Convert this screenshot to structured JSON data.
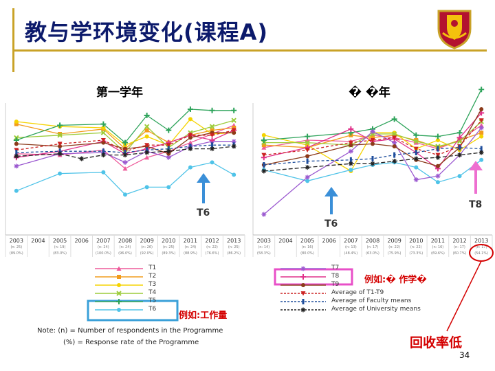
{
  "slide": {
    "title": "教与学环境变化(课程A)",
    "page_number": "34"
  },
  "panels": {
    "left_header": "第一学年",
    "right_header": "� �年",
    "left_marker": "T6",
    "right_marker_t6": "T6",
    "right_marker_t8": "T8"
  },
  "colors": {
    "title": "#0c1a6b",
    "frame": "#c9a227",
    "annotation_red": "#d40000",
    "arrow_blue": "#3a8fd8",
    "arrow_pink": "#ee6fd0",
    "box_blue": "#3aa0d8",
    "box_pink": "#e84fc8"
  },
  "annotations": {
    "example_workload": "例如:工作量",
    "example_learning": "例如:� 作学�",
    "low_response": "回收率低"
  },
  "notes": {
    "n_note": "Note: (n) = Number of respondents in the Programme",
    "pct_note": "(%) = Response rate of the Programme"
  },
  "legend": {
    "left": [
      {
        "label": "T1",
        "color": "#ee5a9a",
        "marker": "triangle"
      },
      {
        "label": "T2",
        "color": "#f29b1c",
        "marker": "square"
      },
      {
        "label": "T3",
        "color": "#f5d300",
        "marker": "circle"
      },
      {
        "label": "T4",
        "color": "#9ccc3a",
        "marker": "x"
      },
      {
        "label": "T5",
        "color": "#2da35a",
        "marker": "plus"
      },
      {
        "label": "T6",
        "color": "#4fc3e8",
        "marker": "dot"
      }
    ],
    "right": [
      {
        "label": "T7",
        "color": "#9b59d0",
        "marker": "star"
      },
      {
        "label": "T8",
        "color": "#e0318a",
        "marker": "plus"
      },
      {
        "label": "T9",
        "color": "#8b3a1a",
        "marker": "dot"
      },
      {
        "label": "Average of T1-T9",
        "color": "#cc2222",
        "marker": "triangle-down"
      },
      {
        "label": "Average of Faculty means",
        "color": "#1f4e9c",
        "marker": "bar"
      },
      {
        "label": "Average of University means",
        "color": "#222222",
        "marker": "star"
      }
    ]
  },
  "chart_data": [
    {
      "type": "line",
      "title": "第一学年",
      "ylim": [
        0,
        10
      ],
      "categories": [
        "2003",
        "2004",
        "2005",
        "2006",
        "2007",
        "2008",
        "2009",
        "2010",
        "2011",
        "2012",
        "2013"
      ],
      "respondents": [
        "(n: 25)",
        "",
        "(n: 19)",
        "",
        "(n: 24)",
        "(n: 24)",
        "(n: 26)",
        "(n: 25)",
        "(n: 24)",
        "(n: 22)",
        "(n: 25)"
      ],
      "response_rates": [
        "(89.0%)",
        "",
        "(83.0%)",
        "",
        "(100.0%)",
        "(96.0%)",
        "(92.0%)",
        "(89.3%)",
        "(88.9%)",
        "(76.6%)",
        "(86.2%)"
      ],
      "series": [
        {
          "name": "T1",
          "values": [
            5.9,
            null,
            5.8,
            null,
            6.2,
            4.7,
            5.6,
            6.1,
            6.8,
            7.5,
            8.2
          ]
        },
        {
          "name": "T2",
          "values": [
            8.3,
            null,
            7.5,
            null,
            7.9,
            6.3,
            7.8,
            6.8,
            7.4,
            7.8,
            8.0
          ]
        },
        {
          "name": "T3",
          "values": [
            8.5,
            null,
            8.1,
            null,
            8.0,
            6.6,
            7.3,
            6.6,
            8.7,
            7.5,
            7.6
          ]
        },
        {
          "name": "T4",
          "values": [
            7.2,
            null,
            7.4,
            null,
            7.6,
            6.0,
            8.1,
            6.4,
            7.6,
            8.1,
            8.6
          ]
        },
        {
          "name": "T5",
          "values": [
            7.0,
            null,
            8.2,
            null,
            8.3,
            6.8,
            9.0,
            7.8,
            9.5,
            9.4,
            9.4
          ]
        },
        {
          "name": "T6",
          "values": [
            2.9,
            null,
            4.3,
            null,
            4.4,
            2.6,
            3.2,
            3.2,
            4.8,
            5.2,
            4.2
          ]
        },
        {
          "name": "T7",
          "values": [
            4.9,
            null,
            5.9,
            null,
            6.0,
            5.2,
            6.1,
            5.6,
            6.5,
            6.9,
            6.9
          ]
        },
        {
          "name": "T8",
          "values": [
            5.6,
            null,
            6.1,
            null,
            6.9,
            5.9,
            6.3,
            6.8,
            7.4,
            7.0,
            7.8
          ]
        },
        {
          "name": "T9",
          "values": [
            6.7,
            null,
            6.5,
            null,
            6.8,
            6.3,
            6.5,
            5.9,
            7.2,
            7.6,
            7.6
          ]
        },
        {
          "name": "Average of T1-T9",
          "values": [
            6.2,
            null,
            6.7,
            null,
            7.0,
            6.1,
            6.6,
            6.6,
            7.4,
            7.4,
            7.8
          ]
        },
        {
          "name": "Average of Faculty means",
          "values": [
            6.0,
            null,
            6.1,
            null,
            6.1,
            6.0,
            6.2,
            6.3,
            6.5,
            6.6,
            6.6
          ]
        },
        {
          "name": "Average of University means",
          "values": [
            5.7,
            null,
            5.9,
            5.5,
            5.8,
            5.8,
            6.0,
            6.1,
            6.3,
            6.3,
            6.5
          ]
        }
      ]
    },
    {
      "type": "line",
      "title": "� �年",
      "ylim": [
        0,
        10
      ],
      "categories": [
        "2003",
        "2004",
        "2005",
        "2006",
        "2007",
        "2008",
        "2009",
        "2010",
        "2011",
        "2012",
        "2013"
      ],
      "respondents": [
        "(n: 14)",
        "",
        "(n: 16)",
        "",
        "(n: 13)",
        "(n: 17)",
        "(n: 22)",
        "(n: 22)",
        "(n: 16)",
        "(n: 17)",
        "(n: 17)"
      ],
      "response_rates": [
        "(58.3%)",
        "",
        "(80.0%)",
        "",
        "(48.4%)",
        "(63.0%)",
        "(75.9%)",
        "(73.3%)",
        "(69.6%)",
        "(60.7%)",
        "(54.1%)"
      ],
      "series": [
        {
          "name": "T1",
          "values": [
            6.4,
            null,
            7.0,
            null,
            6.9,
            7.4,
            7.2,
            6.8,
            6.3,
            7.0,
            8.2
          ]
        },
        {
          "name": "T2",
          "values": [
            6.6,
            null,
            6.4,
            null,
            7.4,
            7.2,
            7.4,
            7.0,
            6.4,
            7.0,
            7.6
          ]
        },
        {
          "name": "T3",
          "values": [
            7.4,
            null,
            6.6,
            null,
            4.5,
            7.6,
            7.6,
            6.3,
            7.0,
            6.2,
            7.3
          ]
        },
        {
          "name": "T4",
          "values": [
            6.8,
            null,
            6.8,
            null,
            6.6,
            7.5,
            7.5,
            6.9,
            6.5,
            6.9,
            8.5
          ]
        },
        {
          "name": "T5",
          "values": [
            7.0,
            null,
            7.3,
            null,
            7.6,
            7.9,
            8.7,
            7.4,
            7.3,
            7.6,
            11.1
          ]
        },
        {
          "name": "T6",
          "values": [
            4.6,
            null,
            3.7,
            null,
            4.6,
            5.0,
            5.2,
            4.8,
            3.6,
            4.1,
            5.4
          ]
        },
        {
          "name": "T7",
          "values": [
            1.0,
            null,
            4.0,
            null,
            6.1,
            7.7,
            6.8,
            3.8,
            4.1,
            5.8,
            8.0
          ]
        },
        {
          "name": "T8",
          "values": [
            5.6,
            null,
            6.4,
            null,
            7.9,
            6.9,
            7.1,
            6.0,
            4.7,
            7.2,
            9.2
          ]
        },
        {
          "name": "T9",
          "values": [
            5.0,
            null,
            5.7,
            null,
            6.6,
            6.7,
            6.5,
            5.4,
            4.9,
            6.4,
            9.5
          ]
        },
        {
          "name": "Average of T1-T9",
          "values": [
            5.8,
            null,
            6.2,
            null,
            6.8,
            7.0,
            7.2,
            6.3,
            5.8,
            6.5,
            8.6
          ]
        },
        {
          "name": "Average of Faculty means",
          "values": [
            5.0,
            null,
            5.3,
            null,
            5.4,
            5.5,
            5.8,
            6.0,
            6.3,
            6.4,
            6.3
          ]
        },
        {
          "name": "Average of University means",
          "values": [
            4.5,
            null,
            4.8,
            null,
            5.1,
            5.1,
            5.3,
            5.5,
            5.6,
            5.8,
            6.0
          ]
        }
      ]
    }
  ]
}
